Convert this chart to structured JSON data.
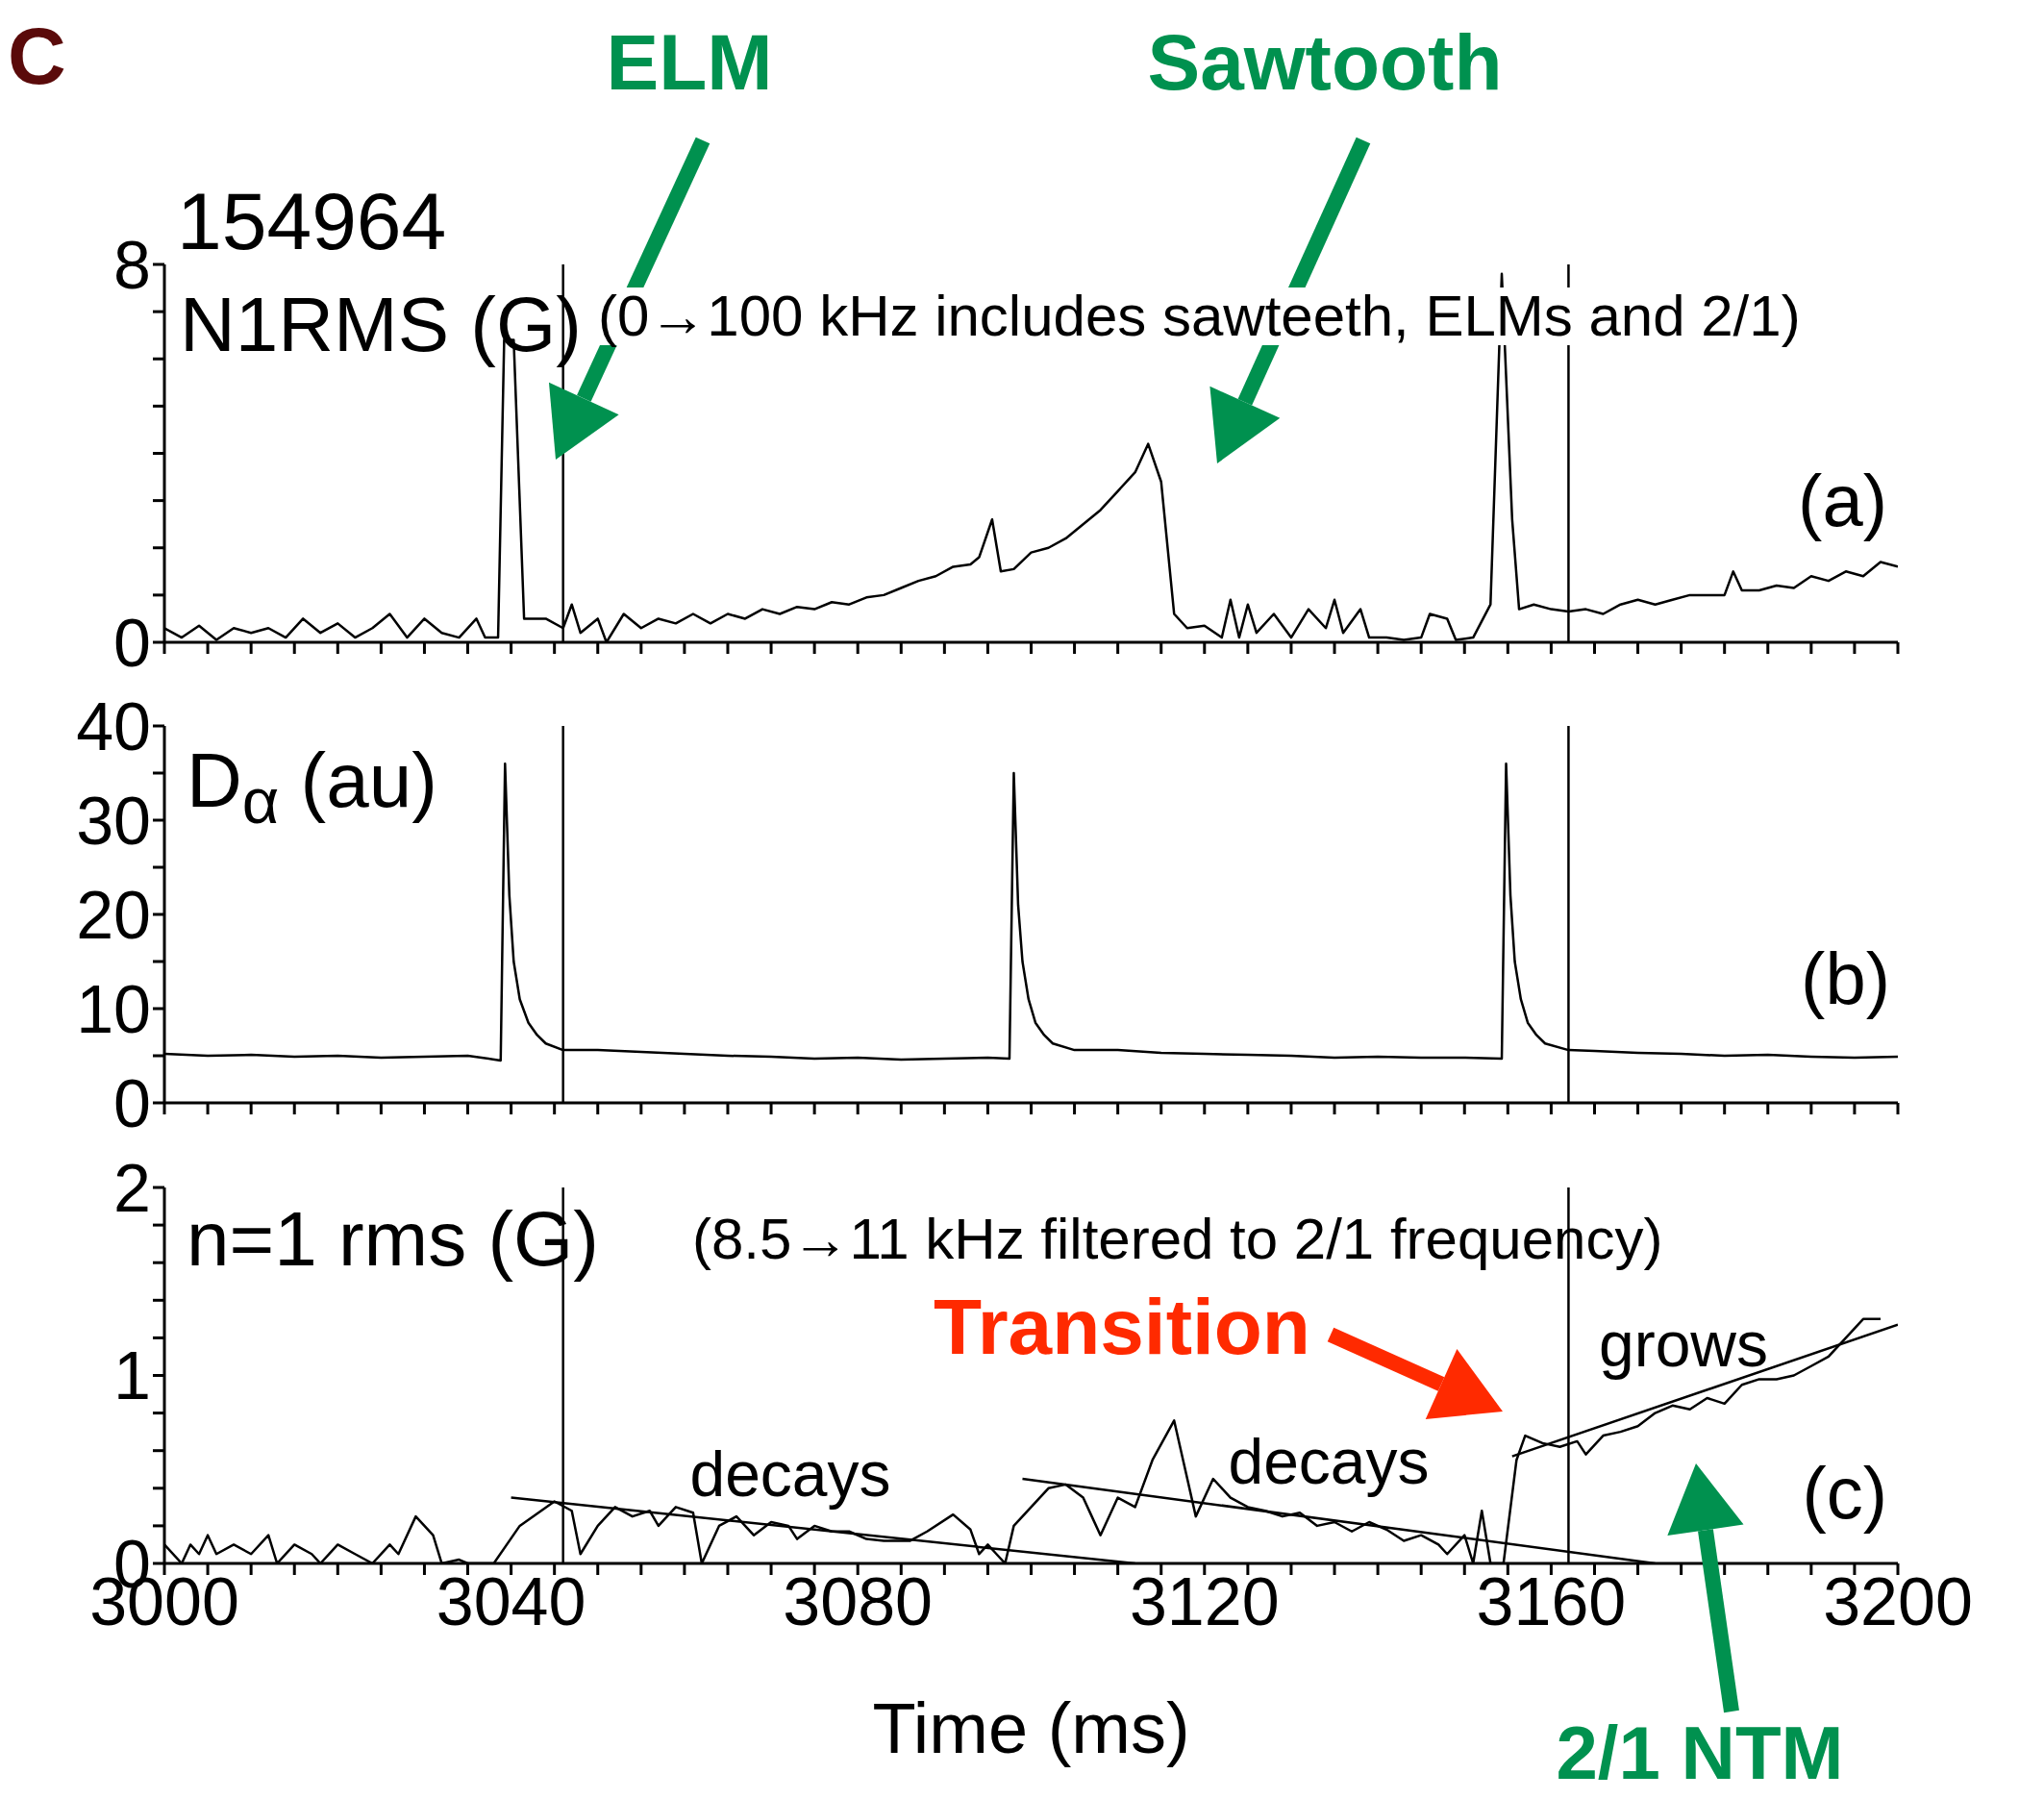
{
  "chart_data": [
    {
      "type": "line",
      "title": "N1RMS (G)",
      "marker": "none",
      "tick_labels": "y",
      "xlim": [
        3000,
        3200
      ],
      "xticks": [
        3000,
        {
          "value": 3005,
          "label": null
        },
        {
          "value": 3010,
          "label": null
        },
        {
          "value": 3015,
          "label": null
        },
        {
          "value": 3020,
          "label": null
        },
        {
          "value": 3025,
          "label": null
        },
        {
          "value": 3030,
          "label": null
        },
        {
          "value": 3035,
          "label": null
        },
        {
          "value": 3040,
          "label": null
        },
        {
          "value": 3045,
          "label": null
        },
        {
          "value": 3050,
          "label": null
        },
        {
          "value": 3055,
          "label": null
        },
        {
          "value": 3060,
          "label": null
        },
        {
          "value": 3065,
          "label": null
        },
        {
          "value": 3070,
          "label": null
        },
        {
          "value": 3075,
          "label": null
        },
        {
          "value": 3080,
          "label": null
        },
        {
          "value": 3085,
          "label": null
        },
        {
          "value": 3090,
          "label": null
        },
        {
          "value": 3095,
          "label": null
        },
        {
          "value": 3100,
          "label": null
        },
        {
          "value": 3105,
          "label": null
        },
        {
          "value": 3110,
          "label": null
        },
        {
          "value": 3115,
          "label": null
        },
        {
          "value": 3120,
          "label": null
        },
        {
          "value": 3125,
          "label": null
        },
        {
          "value": 3130,
          "label": null
        },
        {
          "value": 3135,
          "label": null
        },
        {
          "value": 3140,
          "label": null
        },
        {
          "value": 3145,
          "label": null
        },
        {
          "value": 3150,
          "label": null
        },
        {
          "value": 3155,
          "label": null
        },
        {
          "value": 3160,
          "label": null
        },
        {
          "value": 3165,
          "label": null
        },
        {
          "value": 3170,
          "label": null
        },
        {
          "value": 3175,
          "label": null
        },
        {
          "value": 3180,
          "label": null
        },
        {
          "value": 3185,
          "label": null
        },
        {
          "value": 3190,
          "label": null
        },
        {
          "value": 3195,
          "label": null
        },
        {
          "value": 3200,
          "label": null
        }
      ],
      "ylim": [
        0,
        8
      ],
      "yticks": [
        0,
        {
          "value": 1,
          "label": null
        },
        {
          "value": 2,
          "label": null
        },
        {
          "value": 3,
          "label": null
        },
        {
          "value": 4,
          "label": null
        },
        {
          "value": 5,
          "label": null
        },
        {
          "value": 6,
          "label": null
        },
        {
          "value": 7,
          "label": null
        },
        8
      ],
      "ref_lines": [
        {
          "axis": "x",
          "value": 3046,
          "color": "#000000"
        },
        {
          "axis": "x",
          "value": 3162,
          "color": "#000000"
        }
      ],
      "annotations": [
        "C",
        "ELM",
        "Sawtooth",
        "154964",
        "(0→100 kHz includes sawteeth, ELMs and 2/1)",
        "(a)"
      ],
      "series": [
        {
          "color": "#000000",
          "x": [
            3000,
            3002,
            3004,
            3006,
            3008,
            3010,
            3012,
            3014,
            3016,
            3018,
            3020,
            3022,
            3024,
            3026,
            3028,
            3030,
            3032,
            3034,
            3036,
            3037,
            3038.5,
            3039.2,
            3040.3,
            3041.5,
            3044,
            3046,
            3047,
            3048,
            3050,
            3051,
            3053,
            3055,
            3057,
            3059,
            3061,
            3063,
            3065,
            3067,
            3069,
            3071,
            3073,
            3075,
            3077,
            3079,
            3081,
            3083,
            3085,
            3087,
            3089,
            3091,
            3093,
            3094,
            3095.5,
            3096.5,
            3098,
            3100,
            3102,
            3104,
            3106,
            3108,
            3110,
            3112,
            3113.5,
            3115,
            3116.5,
            3118,
            3120,
            3122,
            3123,
            3124,
            3125,
            3126,
            3128,
            3130,
            3132,
            3134,
            3135,
            3136,
            3138,
            3139,
            3141,
            3143,
            3145,
            3146,
            3148,
            3149,
            3151,
            3153,
            3154.3,
            3155.5,
            3156.3,
            3158,
            3160,
            3162,
            3164,
            3166,
            3168,
            3170,
            3172,
            3174,
            3176,
            3178,
            3180,
            3181,
            3182,
            3184,
            3186,
            3188,
            3190,
            3192,
            3194,
            3196,
            3198,
            3200
          ],
          "values": [
            0.3,
            0.1,
            0.35,
            0.05,
            0.3,
            0.2,
            0.3,
            0.1,
            0.5,
            0.2,
            0.4,
            0.1,
            0.3,
            0.6,
            0.1,
            0.5,
            0.2,
            0.1,
            0.5,
            0.1,
            0.1,
            6.4,
            6.4,
            0.5,
            0.5,
            0.3,
            0.8,
            0.2,
            0.5,
            0,
            0.6,
            0.3,
            0.5,
            0.4,
            0.6,
            0.4,
            0.6,
            0.5,
            0.7,
            0.6,
            0.75,
            0.7,
            0.85,
            0.8,
            0.95,
            1,
            1.15,
            1.3,
            1.4,
            1.6,
            1.65,
            1.8,
            2.6,
            1.5,
            1.55,
            1.9,
            2,
            2.2,
            2.5,
            2.8,
            3.2,
            3.6,
            4.2,
            3.4,
            0.6,
            0.3,
            0.35,
            0.1,
            0.9,
            0.1,
            0.8,
            0.2,
            0.6,
            0.1,
            0.7,
            0.3,
            0.9,
            0.2,
            0.7,
            0.1,
            0.1,
            0.05,
            0.1,
            0.6,
            0.5,
            0.05,
            0.1,
            0.8,
            7.8,
            2.6,
            0.7,
            0.8,
            0.7,
            0.65,
            0.7,
            0.6,
            0.8,
            0.9,
            0.8,
            0.9,
            1,
            1,
            1,
            1.5,
            1.1,
            1.1,
            1.2,
            1.15,
            1.4,
            1.3,
            1.5,
            1.4,
            1.7,
            1.6
          ]
        }
      ]
    },
    {
      "type": "line",
      "title": "D$_{α}$ (au)",
      "marker": "none",
      "tick_labels": "y",
      "xlim": [
        3000,
        3200
      ],
      "xticks": [
        3000,
        {
          "value": 3005,
          "label": null
        },
        {
          "value": 3010,
          "label": null
        },
        {
          "value": 3015,
          "label": null
        },
        {
          "value": 3020,
          "label": null
        },
        {
          "value": 3025,
          "label": null
        },
        {
          "value": 3030,
          "label": null
        },
        {
          "value": 3035,
          "label": null
        },
        {
          "value": 3040,
          "label": null
        },
        {
          "value": 3045,
          "label": null
        },
        {
          "value": 3050,
          "label": null
        },
        {
          "value": 3055,
          "label": null
        },
        {
          "value": 3060,
          "label": null
        },
        {
          "value": 3065,
          "label": null
        },
        {
          "value": 3070,
          "label": null
        },
        {
          "value": 3075,
          "label": null
        },
        {
          "value": 3080,
          "label": null
        },
        {
          "value": 3085,
          "label": null
        },
        {
          "value": 3090,
          "label": null
        },
        {
          "value": 3095,
          "label": null
        },
        {
          "value": 3100,
          "label": null
        },
        {
          "value": 3105,
          "label": null
        },
        {
          "value": 3110,
          "label": null
        },
        {
          "value": 3115,
          "label": null
        },
        {
          "value": 3120,
          "label": null
        },
        {
          "value": 3125,
          "label": null
        },
        {
          "value": 3130,
          "label": null
        },
        {
          "value": 3135,
          "label": null
        },
        {
          "value": 3140,
          "label": null
        },
        {
          "value": 3145,
          "label": null
        },
        {
          "value": 3150,
          "label": null
        },
        {
          "value": 3155,
          "label": null
        },
        {
          "value": 3160,
          "label": null
        },
        {
          "value": 3165,
          "label": null
        },
        {
          "value": 3170,
          "label": null
        },
        {
          "value": 3175,
          "label": null
        },
        {
          "value": 3180,
          "label": null
        },
        {
          "value": 3185,
          "label": null
        },
        {
          "value": 3190,
          "label": null
        },
        {
          "value": 3195,
          "label": null
        },
        {
          "value": 3200,
          "label": null
        }
      ],
      "ylim": [
        0,
        40
      ],
      "yticks": [
        0,
        {
          "value": 5,
          "label": null
        },
        10,
        {
          "value": 15,
          "label": null
        },
        20,
        {
          "value": 25,
          "label": null
        },
        30,
        {
          "value": 35,
          "label": null
        },
        40
      ],
      "ref_lines": [
        {
          "axis": "x",
          "value": 3046,
          "color": "#000000"
        },
        {
          "axis": "x",
          "value": 3162,
          "color": "#000000"
        }
      ],
      "annotations": [
        "(b)"
      ],
      "series": [
        {
          "color": "#000000",
          "x": [
            3000,
            3005,
            3010,
            3015,
            3020,
            3025,
            3030,
            3035,
            3038.8,
            3039.3,
            3039.8,
            3040.3,
            3041,
            3042,
            3043,
            3044,
            3046,
            3050,
            3055,
            3060,
            3065,
            3070,
            3075,
            3080,
            3085,
            3090,
            3095,
            3097.5,
            3098,
            3098.5,
            3099,
            3099.7,
            3100.5,
            3101.5,
            3102.5,
            3105,
            3110,
            3115,
            3120,
            3125,
            3130,
            3135,
            3140,
            3145,
            3150,
            3154.3,
            3154.8,
            3155.3,
            3155.8,
            3156.5,
            3157.3,
            3158.3,
            3159.3,
            3162,
            3165,
            3170,
            3175,
            3180,
            3185,
            3190,
            3195,
            3200
          ],
          "values": [
            5.2,
            5,
            5.1,
            4.9,
            5,
            4.8,
            4.9,
            5,
            4.5,
            36,
            22,
            15,
            11,
            8.5,
            7.2,
            6.3,
            5.6,
            5.6,
            5.4,
            5.2,
            5,
            4.9,
            4.7,
            4.8,
            4.6,
            4.7,
            4.8,
            4.7,
            35,
            21,
            15,
            11,
            8.5,
            7.2,
            6.3,
            5.6,
            5.6,
            5.3,
            5.2,
            5.1,
            5,
            4.8,
            4.9,
            4.8,
            4.8,
            4.7,
            36,
            22,
            15,
            11,
            8.5,
            7.2,
            6.3,
            5.6,
            5.5,
            5.3,
            5.2,
            5,
            5.1,
            4.9,
            4.8,
            4.9
          ]
        }
      ]
    },
    {
      "type": "line",
      "title": "n=1 rms (G)",
      "xlabel": "Time (ms)",
      "marker": "none",
      "xlim": [
        3000,
        3200
      ],
      "xticks": [
        3000,
        {
          "value": 3005,
          "label": null
        },
        {
          "value": 3010,
          "label": null
        },
        {
          "value": 3015,
          "label": null
        },
        {
          "value": 3020,
          "label": null
        },
        {
          "value": 3025,
          "label": null
        },
        {
          "value": 3030,
          "label": null
        },
        {
          "value": 3035,
          "label": null
        },
        3040,
        {
          "value": 3045,
          "label": null
        },
        {
          "value": 3050,
          "label": null
        },
        {
          "value": 3055,
          "label": null
        },
        {
          "value": 3060,
          "label": null
        },
        {
          "value": 3065,
          "label": null
        },
        {
          "value": 3070,
          "label": null
        },
        {
          "value": 3075,
          "label": null
        },
        3080,
        {
          "value": 3085,
          "label": null
        },
        {
          "value": 3090,
          "label": null
        },
        {
          "value": 3095,
          "label": null
        },
        {
          "value": 3100,
          "label": null
        },
        {
          "value": 3105,
          "label": null
        },
        {
          "value": 3110,
          "label": null
        },
        {
          "value": 3115,
          "label": null
        },
        3120,
        {
          "value": 3125,
          "label": null
        },
        {
          "value": 3130,
          "label": null
        },
        {
          "value": 3135,
          "label": null
        },
        {
          "value": 3140,
          "label": null
        },
        {
          "value": 3145,
          "label": null
        },
        {
          "value": 3150,
          "label": null
        },
        {
          "value": 3155,
          "label": null
        },
        3160,
        {
          "value": 3165,
          "label": null
        },
        {
          "value": 3170,
          "label": null
        },
        {
          "value": 3175,
          "label": null
        },
        {
          "value": 3180,
          "label": null
        },
        {
          "value": 3185,
          "label": null
        },
        {
          "value": 3190,
          "label": null
        },
        {
          "value": 3195,
          "label": null
        },
        3200
      ],
      "ylim": [
        0,
        2
      ],
      "yticks": [
        0,
        {
          "value": 0.2,
          "label": null
        },
        {
          "value": 0.4,
          "label": null
        },
        {
          "value": 0.6,
          "label": null
        },
        {
          "value": 0.8,
          "label": null
        },
        1,
        {
          "value": 1.2,
          "label": null
        },
        {
          "value": 1.4,
          "label": null
        },
        {
          "value": 1.6,
          "label": null
        },
        {
          "value": 1.8,
          "label": null
        },
        2
      ],
      "ref_lines": [
        {
          "axis": "x",
          "value": 3046,
          "color": "#000000"
        },
        {
          "axis": "x",
          "value": 3162,
          "color": "#000000"
        }
      ],
      "annotations": [
        "(8.5→11 kHz filtered to 2/1 frequency)",
        "decays",
        "decays",
        "grows",
        "Transition",
        "2/1 NTM",
        "(c)"
      ],
      "series": [
        {
          "color": "#000000",
          "x": [
            3000,
            3002,
            3003,
            3004,
            3005,
            3006,
            3008,
            3010,
            3012,
            3013,
            3015,
            3017,
            3018,
            3020,
            3022,
            3024,
            3026,
            3027,
            3029,
            3031,
            3032,
            3034,
            3035,
            3038,
            3041,
            3045,
            3047,
            3048,
            3050,
            3052,
            3054,
            3056,
            3057,
            3059,
            3061,
            3062,
            3064,
            3066,
            3068,
            3070,
            3072,
            3073,
            3075,
            3077,
            3079,
            3081,
            3083,
            3086,
            3088,
            3091,
            3093,
            3094,
            3095,
            3096,
            3097,
            3098,
            3100,
            3102,
            3104,
            3106,
            3107,
            3108,
            3110,
            3112,
            3114,
            3116.5,
            3119,
            3121,
            3123,
            3125,
            3127,
            3129,
            3131,
            3133,
            3135,
            3137,
            3139,
            3141,
            3143,
            3145,
            3147,
            3148,
            3150,
            3151,
            3152,
            3153,
            3154.5,
            3156,
            3157,
            3159,
            3161,
            3163,
            3164,
            3166,
            3168,
            3170,
            3172,
            3174,
            3176,
            3178,
            3180,
            3182,
            3184,
            3186,
            3188,
            3190,
            3192,
            3194,
            3196,
            3198
          ],
          "values": [
            0.1,
            0,
            0.1,
            0.05,
            0.15,
            0.05,
            0.1,
            0.05,
            0.15,
            0,
            0.1,
            0.05,
            0,
            0.1,
            0.05,
            0,
            0.1,
            0.05,
            0.25,
            0.15,
            0,
            0.02,
            0,
            0,
            0.2,
            0.33,
            0.28,
            0.05,
            0.2,
            0.3,
            0.25,
            0.28,
            0.2,
            0.3,
            0.27,
            0,
            0.2,
            0.25,
            0.15,
            0.22,
            0.2,
            0.13,
            0.2,
            0.17,
            0.17,
            0.13,
            0.12,
            0.12,
            0.17,
            0.26,
            0.18,
            0.05,
            0.1,
            0.05,
            0,
            0.2,
            0.3,
            0.4,
            0.42,
            0.35,
            0.25,
            0.15,
            0.35,
            0.3,
            0.55,
            0.76,
            0.25,
            0.45,
            0.35,
            0.3,
            0.28,
            0.25,
            0.27,
            0.2,
            0.22,
            0.17,
            0.22,
            0.18,
            0.12,
            0.15,
            0.1,
            0.05,
            0.15,
            0,
            0.28,
            0,
            0,
            0.55,
            0.68,
            0.64,
            0.62,
            0.65,
            0.58,
            0.68,
            0.7,
            0.73,
            0.8,
            0.84,
            0.82,
            0.88,
            0.85,
            0.95,
            0.98,
            0.98,
            1,
            1.05,
            1.1,
            1.2,
            1.3,
            1.3
          ]
        },
        {
          "type": "line",
          "color": "#000000",
          "x": [
            3040,
            3112
          ],
          "values": [
            0.35,
            0
          ]
        },
        {
          "type": "line",
          "color": "#000000",
          "x": [
            3099,
            3172
          ],
          "values": [
            0.45,
            0
          ]
        },
        {
          "type": "line",
          "color": "#000000",
          "x": [
            3155.5,
            3200
          ],
          "values": [
            0.57,
            1.27
          ]
        }
      ]
    }
  ]
}
